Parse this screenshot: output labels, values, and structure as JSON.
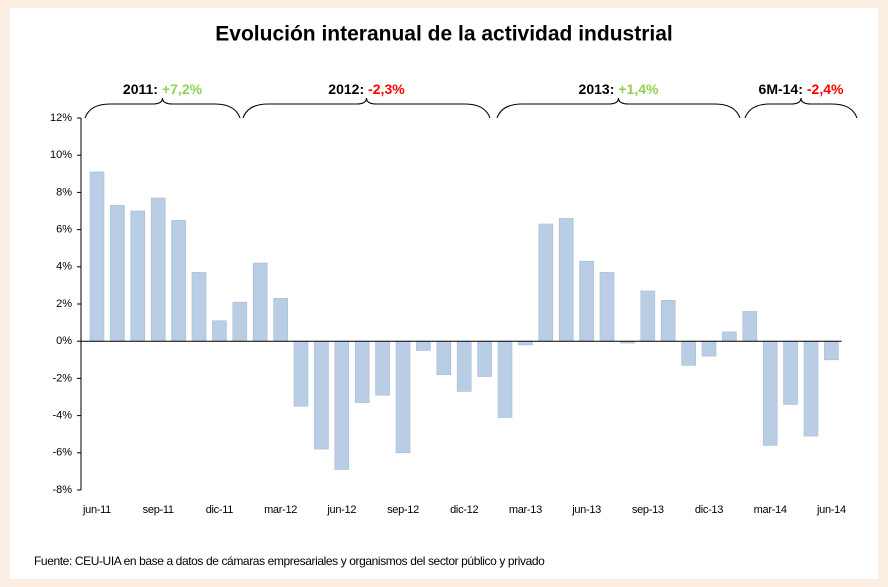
{
  "chart_data": {
    "type": "bar",
    "title": "Evolución interanual de la actividad industrial",
    "categories": [
      "jun-11",
      null,
      null,
      "sep-11",
      null,
      null,
      "dic-11",
      null,
      null,
      "mar-12",
      null,
      null,
      "jun-12",
      null,
      null,
      "sep-12",
      null,
      null,
      "dic-12",
      null,
      null,
      "mar-13",
      null,
      null,
      "jun-13",
      null,
      null,
      "sep-13",
      null,
      null,
      "dic-13",
      null,
      null,
      "mar-14",
      null,
      null,
      "jun-14"
    ],
    "values": [
      9.1,
      7.3,
      7.0,
      7.7,
      6.5,
      3.7,
      1.1,
      2.1,
      4.2,
      2.3,
      -3.5,
      -5.8,
      -6.9,
      -3.3,
      -2.9,
      -6.0,
      -0.5,
      -1.8,
      -2.7,
      -1.9,
      -4.1,
      -0.2,
      6.3,
      6.6,
      4.3,
      3.7,
      -0.1,
      2.7,
      2.2,
      -1.3,
      -0.8,
      0.5,
      1.6,
      -5.6,
      -3.4,
      -5.1,
      -1.0
    ],
    "color": "#b9cde5",
    "ylim": [
      -8,
      12
    ],
    "yticks": [
      {
        "value": -8,
        "label": "-8%"
      },
      {
        "value": -6,
        "label": "-6%"
      },
      {
        "value": -4,
        "label": "-4%"
      },
      {
        "value": -2,
        "label": "-2%"
      },
      {
        "value": 0,
        "label": "0%"
      },
      {
        "value": 2,
        "label": "2%"
      },
      {
        "value": 4,
        "label": "4%"
      },
      {
        "value": 6,
        "label": "6%"
      },
      {
        "value": 8,
        "label": "8%"
      },
      {
        "value": 10,
        "label": "10%"
      },
      {
        "value": 12,
        "label": "12%"
      }
    ],
    "annotations": [
      {
        "label": "2011:",
        "change": "+7,2%",
        "color": "#92d050"
      },
      {
        "label": "2012:",
        "change": "-2,3%",
        "color": "#ff0000"
      },
      {
        "label": "2013:",
        "change": "+1,4%",
        "color": "#92d050"
      },
      {
        "label": "6M-14:",
        "change": "-2,4%",
        "color": "#ff0000"
      }
    ],
    "source": "Fuente: CEU-UIA en base a datos de cámaras empresariales y organismos del sector público y privado"
  }
}
